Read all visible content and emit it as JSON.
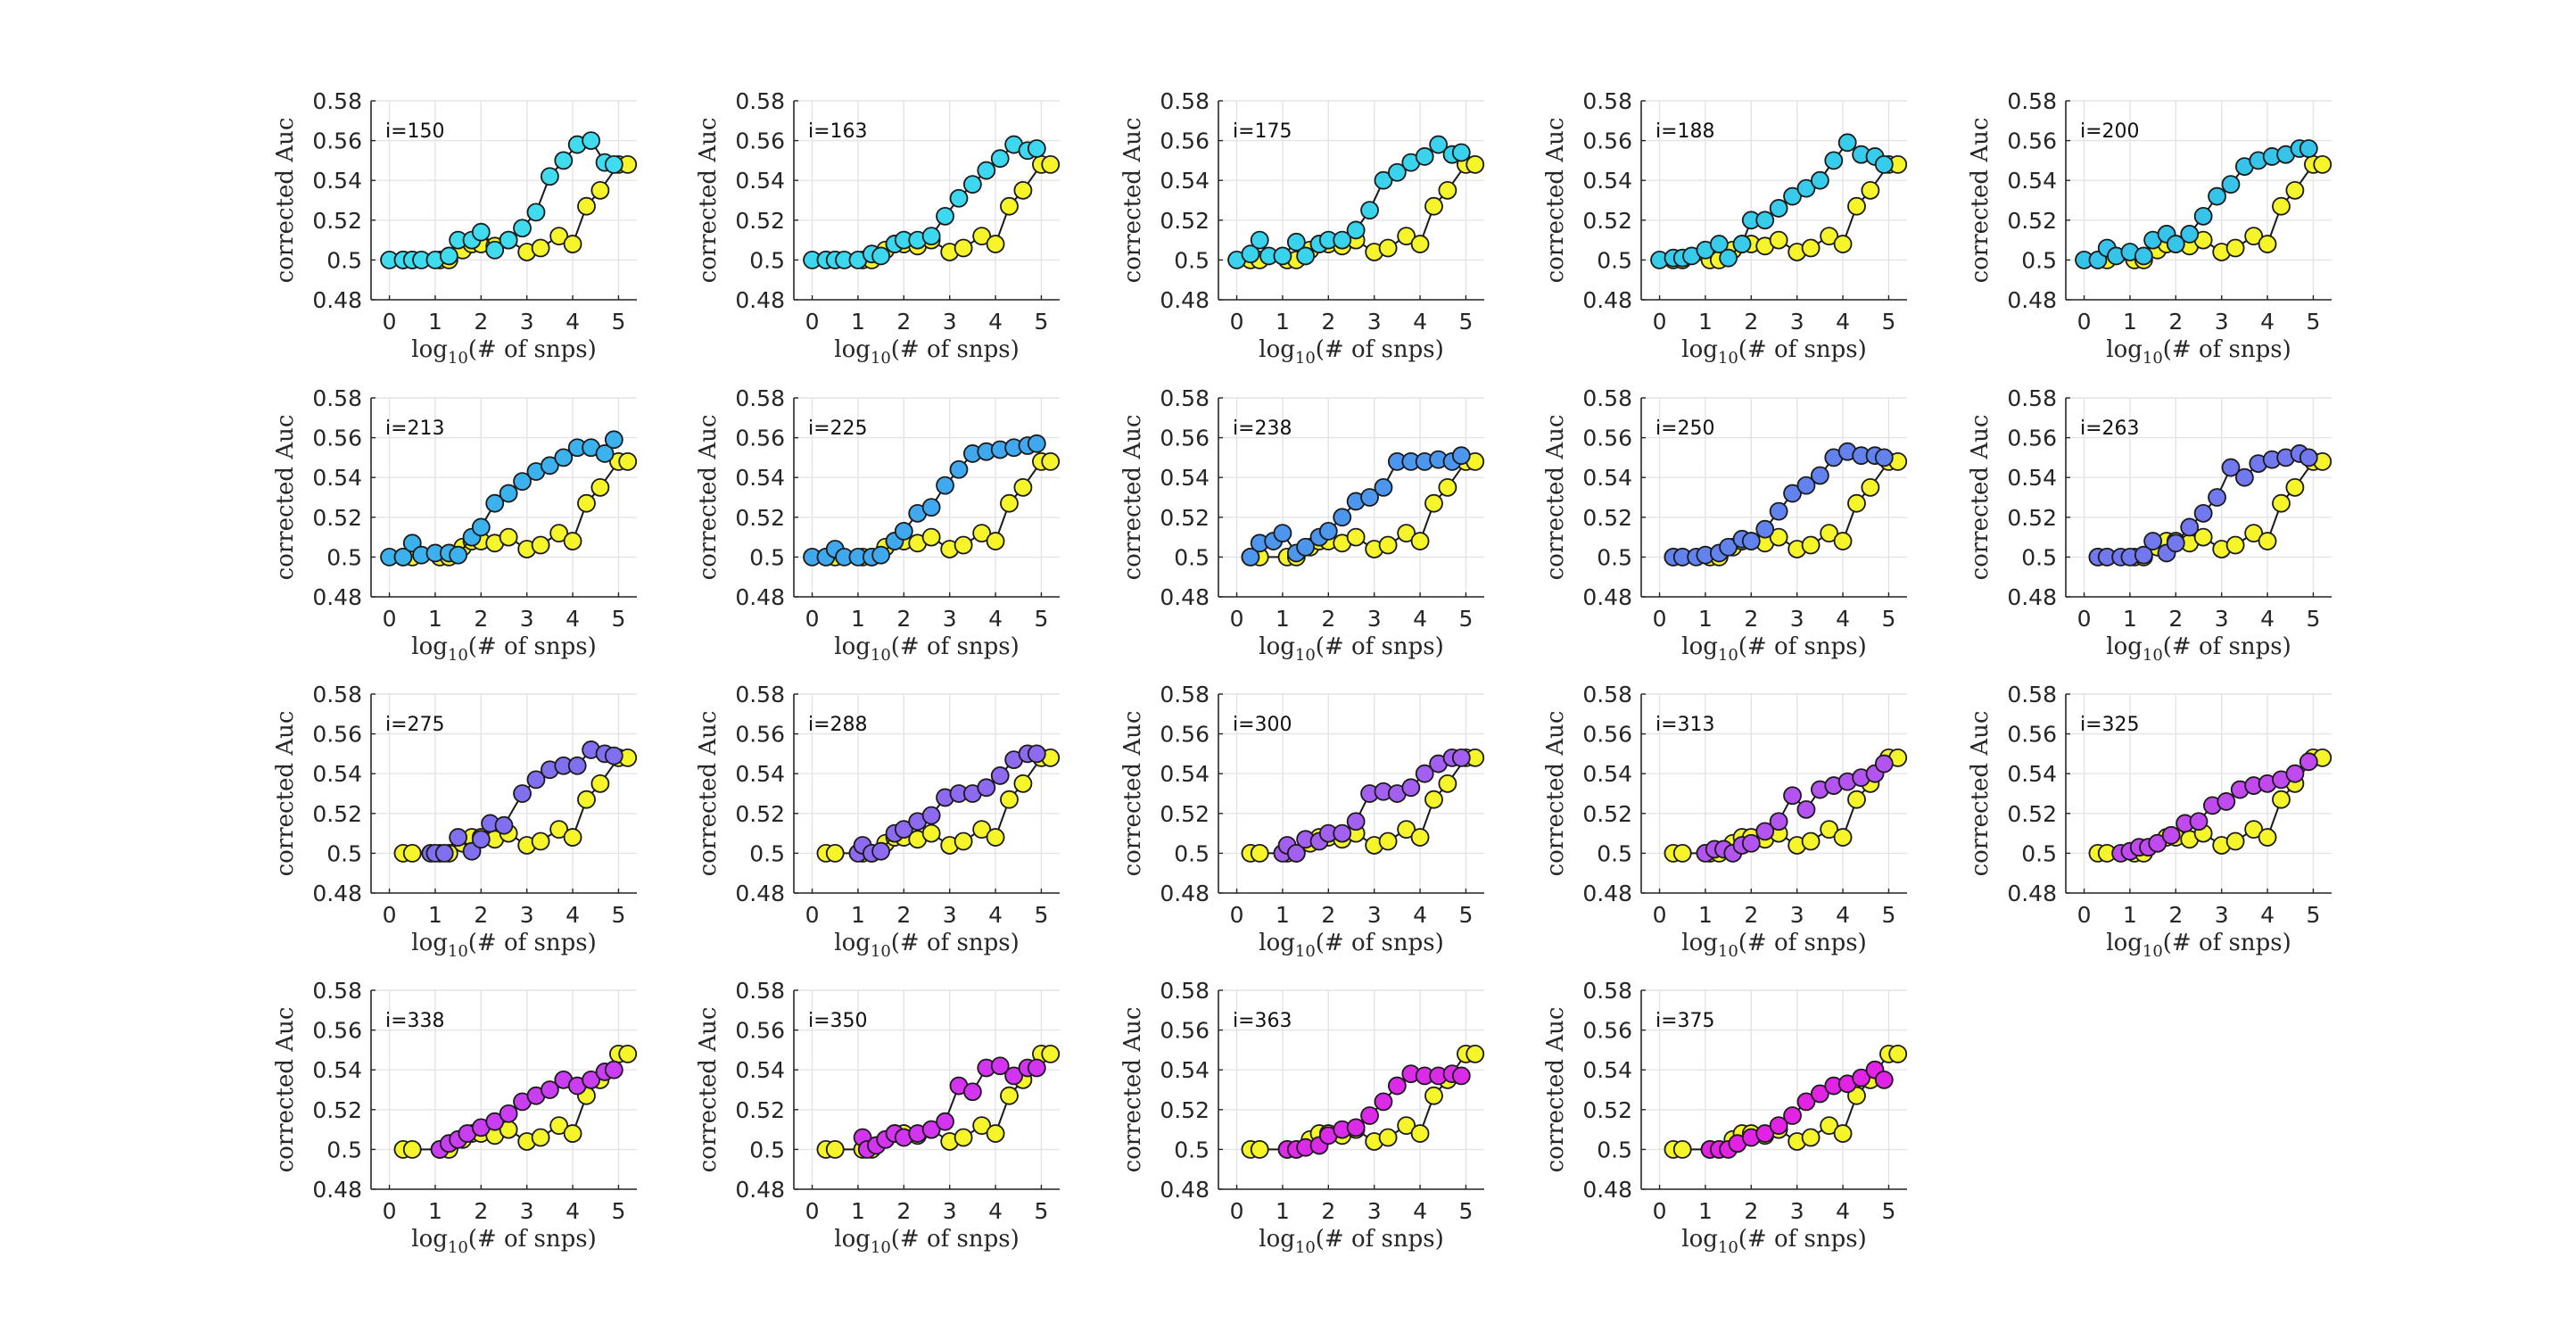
{
  "figure": {
    "background": "#ffffff",
    "y_ticks": [
      "0.48",
      "0.5",
      "0.52",
      "0.54",
      "0.56",
      "0.58"
    ],
    "x_ticks": [
      "0",
      "1",
      "2",
      "3",
      "4",
      "5"
    ],
    "xlabel_pre": "log",
    "xlabel_sub": "10",
    "xlabel_post": "(# of snps)",
    "ylabel": "corrected Auc"
  },
  "chart_data": {
    "type": "line",
    "layout": "4x5 small multiples (19 panels)",
    "xlim": [
      -0.4,
      5.4
    ],
    "ylim": [
      0.48,
      0.58
    ],
    "grid": true,
    "reference_series": {
      "name": "baseline",
      "color": "#f5f52a",
      "x": [
        0.3,
        0.5,
        1.1,
        1.3,
        1.6,
        1.8,
        2.0,
        2.3,
        2.6,
        3.0,
        3.3,
        3.7,
        4.0,
        4.3,
        4.6,
        5.0,
        5.2
      ],
      "values": [
        0.5,
        0.5,
        0.5,
        0.5,
        0.505,
        0.508,
        0.508,
        0.507,
        0.51,
        0.504,
        0.506,
        0.512,
        0.508,
        0.527,
        0.535,
        0.548,
        0.548
      ]
    },
    "panels": [
      {
        "label": "i=150",
        "color": "#3fdcf0",
        "x": [
          0,
          0.3,
          0.5,
          0.7,
          1.0,
          1.3,
          1.5,
          1.8,
          2.0,
          2.3,
          2.6,
          2.9,
          3.2,
          3.5,
          3.8,
          4.1,
          4.4,
          4.7,
          4.9
        ],
        "values": [
          0.5,
          0.5,
          0.5,
          0.5,
          0.5,
          0.502,
          0.51,
          0.51,
          0.514,
          0.505,
          0.51,
          0.516,
          0.524,
          0.542,
          0.55,
          0.558,
          0.56,
          0.549,
          0.548
        ]
      },
      {
        "label": "i=163",
        "color": "#3cd8ef",
        "x": [
          0,
          0.3,
          0.5,
          0.7,
          1.0,
          1.3,
          1.5,
          1.8,
          2.0,
          2.3,
          2.6,
          2.9,
          3.2,
          3.5,
          3.8,
          4.1,
          4.4,
          4.7,
          4.9
        ],
        "values": [
          0.5,
          0.5,
          0.5,
          0.5,
          0.5,
          0.503,
          0.502,
          0.508,
          0.51,
          0.51,
          0.512,
          0.522,
          0.531,
          0.538,
          0.545,
          0.551,
          0.558,
          0.555,
          0.556
        ]
      },
      {
        "label": "i=175",
        "color": "#3ad3ee",
        "x": [
          0,
          0.3,
          0.5,
          0.7,
          1.0,
          1.3,
          1.5,
          1.8,
          2.0,
          2.3,
          2.6,
          2.9,
          3.2,
          3.5,
          3.8,
          4.1,
          4.4,
          4.7,
          4.9
        ],
        "values": [
          0.5,
          0.503,
          0.51,
          0.502,
          0.502,
          0.509,
          0.502,
          0.508,
          0.51,
          0.51,
          0.515,
          0.525,
          0.54,
          0.544,
          0.549,
          0.552,
          0.558,
          0.553,
          0.554
        ]
      },
      {
        "label": "i=188",
        "color": "#38ccec",
        "x": [
          0,
          0.3,
          0.5,
          0.7,
          1.0,
          1.3,
          1.5,
          1.8,
          2.0,
          2.3,
          2.6,
          2.9,
          3.2,
          3.5,
          3.8,
          4.1,
          4.4,
          4.7,
          4.9
        ],
        "values": [
          0.5,
          0.501,
          0.501,
          0.502,
          0.505,
          0.508,
          0.501,
          0.508,
          0.52,
          0.52,
          0.526,
          0.532,
          0.536,
          0.54,
          0.55,
          0.559,
          0.553,
          0.552,
          0.548
        ]
      },
      {
        "label": "i=200",
        "color": "#36c4ea",
        "x": [
          0,
          0.3,
          0.5,
          0.7,
          1.0,
          1.3,
          1.5,
          1.8,
          2.0,
          2.3,
          2.6,
          2.9,
          3.2,
          3.5,
          3.8,
          4.1,
          4.4,
          4.7,
          4.9
        ],
        "values": [
          0.5,
          0.5,
          0.506,
          0.502,
          0.504,
          0.502,
          0.51,
          0.513,
          0.508,
          0.513,
          0.522,
          0.532,
          0.538,
          0.547,
          0.55,
          0.552,
          0.553,
          0.556,
          0.556
        ]
      },
      {
        "label": "i=213",
        "color": "#3bb2ee",
        "x": [
          0,
          0.3,
          0.5,
          0.7,
          1.0,
          1.3,
          1.5,
          1.8,
          2.0,
          2.3,
          2.6,
          2.9,
          3.2,
          3.5,
          3.8,
          4.1,
          4.4,
          4.7,
          4.9
        ],
        "values": [
          0.5,
          0.5,
          0.507,
          0.501,
          0.502,
          0.502,
          0.501,
          0.51,
          0.515,
          0.527,
          0.532,
          0.538,
          0.543,
          0.546,
          0.55,
          0.555,
          0.555,
          0.552,
          0.559
        ]
      },
      {
        "label": "i=225",
        "color": "#40a8ee",
        "x": [
          0,
          0.3,
          0.5,
          0.7,
          1.0,
          1.3,
          1.5,
          1.8,
          2.0,
          2.3,
          2.6,
          2.9,
          3.2,
          3.5,
          3.8,
          4.1,
          4.4,
          4.7,
          4.9
        ],
        "values": [
          0.5,
          0.5,
          0.504,
          0.5,
          0.5,
          0.5,
          0.501,
          0.508,
          0.513,
          0.522,
          0.525,
          0.536,
          0.544,
          0.552,
          0.553,
          0.554,
          0.555,
          0.556,
          0.557
        ]
      },
      {
        "label": "i=238",
        "color": "#4d96ee",
        "x": [
          0.3,
          0.5,
          0.8,
          1.0,
          1.3,
          1.5,
          1.8,
          2.0,
          2.3,
          2.6,
          2.9,
          3.2,
          3.5,
          3.8,
          4.1,
          4.4,
          4.7,
          4.9
        ],
        "values": [
          0.5,
          0.507,
          0.508,
          0.512,
          0.502,
          0.505,
          0.51,
          0.513,
          0.52,
          0.528,
          0.53,
          0.535,
          0.548,
          0.548,
          0.548,
          0.549,
          0.548,
          0.551
        ]
      },
      {
        "label": "i=250",
        "color": "#6283ee",
        "x": [
          0.3,
          0.5,
          0.8,
          1.0,
          1.3,
          1.5,
          1.8,
          2.0,
          2.3,
          2.6,
          2.9,
          3.2,
          3.5,
          3.8,
          4.1,
          4.4,
          4.7,
          4.9
        ],
        "values": [
          0.5,
          0.5,
          0.5,
          0.501,
          0.502,
          0.505,
          0.509,
          0.508,
          0.514,
          0.523,
          0.532,
          0.536,
          0.541,
          0.55,
          0.553,
          0.551,
          0.551,
          0.55
        ]
      },
      {
        "label": "i=263",
        "color": "#7278ee",
        "x": [
          0.3,
          0.5,
          0.8,
          1.0,
          1.3,
          1.5,
          1.8,
          2.0,
          2.3,
          2.6,
          2.9,
          3.2,
          3.5,
          3.8,
          4.1,
          4.4,
          4.7,
          4.9
        ],
        "values": [
          0.5,
          0.5,
          0.5,
          0.5,
          0.501,
          0.508,
          0.502,
          0.507,
          0.515,
          0.522,
          0.53,
          0.545,
          0.54,
          0.547,
          0.549,
          0.55,
          0.552,
          0.55
        ]
      },
      {
        "label": "i=275",
        "color": "#8070ef",
        "x": [
          0.9,
          1.0,
          1.2,
          1.5,
          1.8,
          2.0,
          2.2,
          2.5,
          2.9,
          3.2,
          3.5,
          3.8,
          4.1,
          4.4,
          4.7,
          4.9
        ],
        "values": [
          0.5,
          0.5,
          0.5,
          0.508,
          0.501,
          0.507,
          0.515,
          0.514,
          0.53,
          0.537,
          0.542,
          0.544,
          0.544,
          0.552,
          0.55,
          0.549
        ]
      },
      {
        "label": "i=288",
        "color": "#8d6aef",
        "x": [
          1.0,
          1.1,
          1.3,
          1.5,
          1.8,
          2.0,
          2.3,
          2.6,
          2.9,
          3.2,
          3.5,
          3.8,
          4.1,
          4.4,
          4.7,
          4.9
        ],
        "values": [
          0.5,
          0.504,
          0.5,
          0.501,
          0.51,
          0.512,
          0.516,
          0.519,
          0.528,
          0.53,
          0.53,
          0.533,
          0.539,
          0.547,
          0.55,
          0.55
        ]
      },
      {
        "label": "i=300",
        "color": "#a35ff0",
        "x": [
          1.0,
          1.1,
          1.3,
          1.5,
          1.8,
          2.0,
          2.3,
          2.6,
          2.9,
          3.2,
          3.5,
          3.8,
          4.1,
          4.4,
          4.7,
          4.9
        ],
        "values": [
          0.5,
          0.504,
          0.5,
          0.507,
          0.506,
          0.51,
          0.51,
          0.516,
          0.53,
          0.531,
          0.53,
          0.533,
          0.54,
          0.545,
          0.548,
          0.548
        ]
      },
      {
        "label": "i=313",
        "color": "#b354f0",
        "x": [
          1.0,
          1.2,
          1.4,
          1.6,
          1.8,
          2.0,
          2.3,
          2.6,
          2.9,
          3.2,
          3.5,
          3.8,
          4.1,
          4.4,
          4.7,
          4.9
        ],
        "values": [
          0.5,
          0.502,
          0.502,
          0.5,
          0.504,
          0.505,
          0.511,
          0.516,
          0.529,
          0.522,
          0.532,
          0.534,
          0.536,
          0.538,
          0.54,
          0.545
        ]
      },
      {
        "label": "i=325",
        "color": "#c04af0",
        "x": [
          0.8,
          1.0,
          1.2,
          1.4,
          1.6,
          1.9,
          2.2,
          2.5,
          2.8,
          3.1,
          3.4,
          3.7,
          4.0,
          4.3,
          4.6,
          4.9
        ],
        "values": [
          0.5,
          0.501,
          0.503,
          0.503,
          0.505,
          0.509,
          0.515,
          0.516,
          0.524,
          0.526,
          0.532,
          0.534,
          0.535,
          0.537,
          0.54,
          0.546
        ]
      },
      {
        "label": "i=338",
        "color": "#c83ef0",
        "x": [
          1.1,
          1.3,
          1.5,
          1.7,
          2.0,
          2.3,
          2.6,
          2.9,
          3.2,
          3.5,
          3.8,
          4.1,
          4.4,
          4.7,
          4.9
        ],
        "values": [
          0.5,
          0.503,
          0.505,
          0.508,
          0.511,
          0.514,
          0.518,
          0.524,
          0.527,
          0.53,
          0.535,
          0.532,
          0.535,
          0.539,
          0.54
        ]
      },
      {
        "label": "i=350",
        "color": "#d234ef",
        "x": [
          1.1,
          1.2,
          1.4,
          1.6,
          1.8,
          2.0,
          2.3,
          2.6,
          2.9,
          3.2,
          3.5,
          3.8,
          4.1,
          4.4,
          4.7,
          4.9
        ],
        "values": [
          0.506,
          0.5,
          0.502,
          0.505,
          0.508,
          0.506,
          0.508,
          0.51,
          0.514,
          0.532,
          0.529,
          0.541,
          0.542,
          0.537,
          0.541,
          0.541
        ]
      },
      {
        "label": "i=363",
        "color": "#dc2ae9",
        "x": [
          1.1,
          1.3,
          1.5,
          1.8,
          2.0,
          2.3,
          2.6,
          2.9,
          3.2,
          3.5,
          3.8,
          4.1,
          4.4,
          4.7,
          4.9
        ],
        "values": [
          0.5,
          0.5,
          0.501,
          0.502,
          0.507,
          0.51,
          0.511,
          0.517,
          0.524,
          0.532,
          0.538,
          0.537,
          0.537,
          0.538,
          0.537
        ]
      },
      {
        "label": "i=375",
        "color": "#e222e5",
        "x": [
          1.1,
          1.3,
          1.5,
          1.7,
          2.0,
          2.3,
          2.6,
          2.9,
          3.2,
          3.5,
          3.8,
          4.1,
          4.4,
          4.7,
          4.9
        ],
        "values": [
          0.5,
          0.5,
          0.5,
          0.503,
          0.506,
          0.508,
          0.512,
          0.517,
          0.524,
          0.528,
          0.532,
          0.533,
          0.536,
          0.54,
          0.535
        ]
      }
    ]
  }
}
